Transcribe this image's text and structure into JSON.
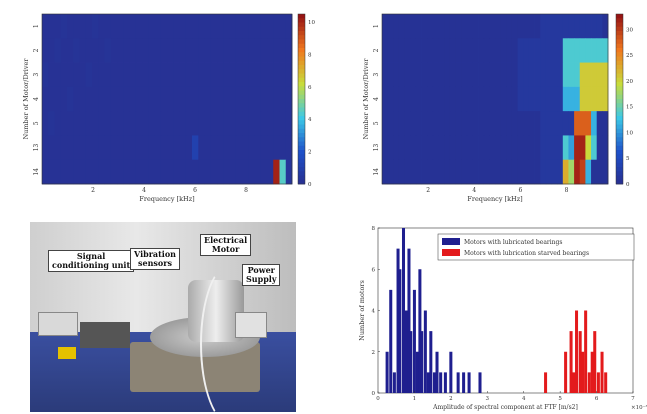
{
  "chart_data": [
    {
      "type": "heatmap",
      "ylabel": "Number of Motor/Driver",
      "xlabel": "Frequency [kHz]",
      "x_ticks": [
        "2",
        "4",
        "6",
        "8"
      ],
      "y_ticks": [
        "1",
        "2",
        "3",
        "4",
        "5",
        "13",
        "14"
      ],
      "colorbar_ticks": [
        "10",
        "8",
        "6",
        "4",
        "2",
        "0"
      ],
      "colorbar_range": [
        0,
        10.5
      ],
      "grid": [
        [
          0.3,
          0.3,
          0.3,
          0.4,
          0.3,
          0.3,
          0.3,
          0.3,
          0.4,
          0.3,
          0.3,
          0.3,
          0.3,
          0.3,
          0.3,
          0.3,
          0.3,
          0.3,
          0.3,
          0.3,
          0.3,
          0.3,
          0.3,
          0.3,
          0.3,
          0.3,
          0.3,
          0.3,
          0.3,
          0.3,
          0.3,
          0.3,
          0.3,
          0.3,
          0.3,
          0.3,
          0.3,
          0.3,
          0.3,
          0.3
        ],
        [
          0.3,
          0.3,
          0.4,
          0.3,
          0.3,
          0.4,
          0.3,
          0.3,
          0.3,
          0.3,
          0.4,
          0.3,
          0.3,
          0.3,
          0.3,
          0.3,
          0.3,
          0.3,
          0.3,
          0.3,
          0.3,
          0.3,
          0.3,
          0.3,
          0.3,
          0.3,
          0.3,
          0.3,
          0.3,
          0.3,
          0.3,
          0.3,
          0.3,
          0.3,
          0.3,
          0.3,
          0.3,
          0.3,
          0.3,
          0.3
        ],
        [
          0.4,
          0.3,
          0.3,
          0.3,
          0.3,
          0.3,
          0.3,
          0.4,
          0.3,
          0.3,
          0.3,
          0.3,
          0.3,
          0.3,
          0.3,
          0.3,
          0.3,
          0.3,
          0.3,
          0.3,
          0.3,
          0.3,
          0.3,
          0.3,
          0.3,
          0.3,
          0.3,
          0.3,
          0.3,
          0.3,
          0.3,
          0.3,
          0.3,
          0.3,
          0.3,
          0.3,
          0.3,
          0.3,
          0.3,
          0.3
        ],
        [
          0.3,
          0.3,
          0.3,
          0.3,
          0.4,
          0.3,
          0.3,
          0.3,
          0.3,
          0.3,
          0.3,
          0.3,
          0.3,
          0.3,
          0.3,
          0.3,
          0.3,
          0.3,
          0.3,
          0.3,
          0.3,
          0.3,
          0.3,
          0.3,
          0.3,
          0.3,
          0.3,
          0.3,
          0.3,
          0.3,
          0.3,
          0.3,
          0.3,
          0.3,
          0.3,
          0.3,
          0.3,
          0.3,
          0.3,
          0.3
        ],
        [
          0.3,
          0.4,
          0.3,
          0.3,
          0.3,
          0.3,
          0.3,
          0.3,
          0.3,
          0.3,
          0.3,
          0.3,
          0.3,
          0.3,
          0.3,
          0.3,
          0.3,
          0.3,
          0.3,
          0.3,
          0.3,
          0.3,
          0.3,
          0.3,
          0.3,
          0.3,
          0.3,
          0.3,
          0.3,
          0.3,
          0.3,
          0.3,
          0.3,
          0.3,
          0.3,
          0.3,
          0.3,
          0.3,
          0.3,
          0.3
        ],
        [
          0.3,
          0.3,
          0.3,
          0.3,
          0.3,
          0.3,
          0.3,
          0.3,
          0.3,
          0.3,
          0.3,
          0.3,
          0.3,
          0.3,
          0.3,
          0.3,
          0.3,
          0.3,
          0.3,
          0.3,
          0.3,
          0.3,
          0.3,
          0.3,
          1.2,
          0.3,
          0.3,
          0.3,
          0.3,
          0.3,
          0.3,
          0.3,
          0.3,
          0.3,
          0.3,
          0.3,
          0.3,
          0.3,
          0.3,
          0.3
        ],
        [
          0.3,
          0.3,
          0.3,
          0.3,
          0.3,
          0.3,
          0.3,
          0.3,
          0.3,
          0.3,
          0.3,
          0.3,
          0.3,
          0.3,
          0.3,
          0.3,
          0.3,
          0.3,
          0.3,
          0.3,
          0.3,
          0.3,
          0.3,
          0.3,
          0.3,
          0.3,
          0.3,
          0.3,
          0.3,
          0.3,
          0.3,
          0.3,
          0.3,
          0.3,
          0.3,
          0.3,
          0.3,
          10.2,
          4.6,
          0.5
        ]
      ]
    },
    {
      "type": "heatmap",
      "ylabel": "Number of Motor/Driver",
      "xlabel": "Frequency [kHz]",
      "x_ticks": [
        "2",
        "4",
        "6",
        "8"
      ],
      "y_ticks": [
        "1",
        "2",
        "3",
        "4",
        "5",
        "13",
        "14"
      ],
      "colorbar_ticks": [
        "30",
        "25",
        "20",
        "15",
        "10",
        "5",
        "0"
      ],
      "colorbar_range": [
        0,
        33
      ],
      "grid": [
        [
          1,
          1,
          1,
          1,
          1,
          1,
          1,
          1,
          1,
          1,
          1,
          1,
          1,
          1,
          1,
          1,
          1,
          1,
          1,
          1,
          1,
          1,
          1,
          1,
          1,
          1,
          1,
          1,
          2,
          2,
          2,
          2,
          2,
          2,
          2,
          2,
          2,
          2,
          2,
          1
        ],
        [
          1,
          1,
          1,
          1,
          1,
          1,
          1,
          1,
          1,
          1,
          1,
          1,
          1,
          1,
          1,
          1,
          1,
          1,
          1,
          1,
          1,
          1,
          1,
          1,
          2,
          2,
          2,
          2,
          2,
          2,
          2,
          2,
          14,
          14,
          14,
          14,
          14,
          14,
          14,
          14
        ],
        [
          1,
          1,
          1,
          1,
          1,
          1,
          1,
          1,
          1,
          1,
          1,
          1,
          1,
          1,
          1,
          1,
          1,
          1,
          1,
          1,
          1,
          1,
          1,
          1,
          2,
          2,
          2,
          2,
          2,
          2,
          2,
          2,
          14,
          14,
          14,
          21,
          21,
          21,
          21,
          21
        ],
        [
          1,
          1,
          1,
          1,
          1,
          1,
          1,
          1,
          1,
          1,
          1,
          1,
          1,
          1,
          1,
          1,
          1,
          1,
          1,
          1,
          1,
          1,
          1,
          1,
          2,
          2,
          2,
          2,
          2,
          2,
          2,
          2,
          12,
          12,
          12,
          21,
          21,
          21,
          21,
          21
        ],
        [
          1,
          1,
          1,
          1,
          1,
          1,
          1,
          1,
          1,
          1,
          1,
          1,
          1,
          1,
          1,
          1,
          1,
          1,
          1,
          1,
          1,
          1,
          1,
          1,
          1,
          1,
          1,
          1,
          2,
          2,
          2,
          2,
          2,
          2,
          28,
          28,
          28,
          12,
          1,
          1
        ],
        [
          1,
          1,
          1,
          1,
          1,
          1,
          1,
          1,
          1,
          1,
          1,
          1,
          1,
          1,
          1,
          1,
          1,
          1,
          1,
          1,
          1,
          1,
          1,
          1,
          1,
          1,
          1,
          1,
          2,
          2,
          2,
          2,
          14,
          11,
          32,
          32,
          20,
          14,
          1,
          1
        ],
        [
          1,
          1,
          1,
          1,
          1,
          1,
          1,
          1,
          1,
          1,
          1,
          1,
          1,
          1,
          1,
          1,
          1,
          1,
          1,
          1,
          1,
          1,
          1,
          1,
          1,
          1,
          1,
          1,
          2,
          2,
          2,
          2,
          23,
          18,
          32,
          30,
          12,
          1,
          1,
          1
        ]
      ]
    },
    {
      "type": "bar",
      "ylabel": "Number of motors",
      "xlabel": "Amplitude of spectral component at FTF [m/s2]",
      "x_exponent": "×10⁻³",
      "x_ticks": [
        "0",
        "1",
        "2",
        "3",
        "4",
        "5",
        "6",
        "7"
      ],
      "y_ticks": [
        "0",
        "2",
        "4",
        "6",
        "8"
      ],
      "xlim": [
        0,
        7
      ],
      "ylim": [
        0,
        8
      ],
      "grid": false,
      "legend_position": "top-right",
      "bar_width": 0.05,
      "series": [
        {
          "name": "Motors with lubricated bearings",
          "color": "#1f1f8f",
          "x": [
            0.25,
            0.35,
            0.45,
            0.55,
            0.6,
            0.7,
            0.78,
            0.85,
            0.9,
            1.0,
            1.08,
            1.15,
            1.2,
            1.3,
            1.38,
            1.45,
            1.55,
            1.62,
            1.72,
            1.85,
            2.0,
            2.2,
            2.35,
            2.5,
            2.8
          ],
          "values": [
            2,
            5,
            1,
            7,
            6,
            8,
            4,
            7,
            3,
            5,
            2,
            6,
            3,
            4,
            1,
            3,
            1,
            2,
            1,
            1,
            2,
            1,
            1,
            1,
            1
          ]
        },
        {
          "name": "Motors with lubrication starved bearings",
          "color": "#e31a1c",
          "x": [
            4.6,
            5.15,
            5.3,
            5.38,
            5.45,
            5.55,
            5.62,
            5.7,
            5.8,
            5.88,
            5.95,
            6.05,
            6.15,
            6.25
          ],
          "values": [
            1,
            2,
            3,
            1,
            4,
            3,
            2,
            4,
            1,
            2,
            3,
            1,
            2,
            1
          ]
        }
      ]
    }
  ],
  "photo": {
    "labels": [
      {
        "lines": [
          "Signal",
          "conditioning unit"
        ]
      },
      {
        "lines": [
          "Vibration",
          "sensors"
        ]
      },
      {
        "lines": [
          "Electrical",
          "Motor"
        ]
      },
      {
        "lines": [
          "Power",
          "Supply"
        ]
      }
    ]
  }
}
